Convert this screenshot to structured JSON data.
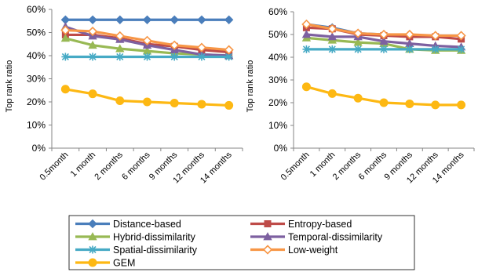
{
  "chart_data": [
    {
      "type": "line",
      "ylabel": "Top rank ratio",
      "ylim": [
        0,
        0.6
      ],
      "yticks": [
        "0%",
        "10%",
        "20%",
        "30%",
        "40%",
        "50%",
        "60%"
      ],
      "categories": [
        "0.5month",
        "1 month",
        "2 months",
        "6 months",
        "9 months",
        "12 months",
        "14 months"
      ],
      "grid": false,
      "series": [
        {
          "name": "Distance-based",
          "values": [
            0.555,
            0.555,
            0.555,
            0.555,
            0.555,
            0.555,
            0.555
          ]
        },
        {
          "name": "Entropy-based",
          "values": [
            0.49,
            0.49,
            0.475,
            0.45,
            0.44,
            0.425,
            0.415
          ]
        },
        {
          "name": "Hybrid-dissimilarity",
          "values": [
            0.475,
            0.445,
            0.43,
            0.42,
            0.41,
            0.405,
            0.4
          ]
        },
        {
          "name": "Temporal-dissimilarity",
          "values": [
            0.525,
            0.485,
            0.47,
            0.445,
            0.425,
            0.405,
            0.4
          ]
        },
        {
          "name": "Spatial-dissimilarity",
          "values": [
            0.395,
            0.395,
            0.395,
            0.395,
            0.395,
            0.395,
            0.395
          ]
        },
        {
          "name": "Low-weight",
          "values": [
            0.51,
            0.505,
            0.485,
            0.465,
            0.445,
            0.435,
            0.425
          ]
        },
        {
          "name": "GEM",
          "values": [
            0.255,
            0.235,
            0.205,
            0.2,
            0.195,
            0.19,
            0.185
          ]
        }
      ]
    },
    {
      "type": "line",
      "ylabel": "Top rank ratio",
      "ylim": [
        0,
        0.6
      ],
      "yticks": [
        "0%",
        "10%",
        "20%",
        "30%",
        "40%",
        "50%",
        "60%"
      ],
      "categories": [
        "0.5month",
        "1 month",
        "2 months",
        "6 months",
        "9 months",
        "12 months",
        "14 months"
      ],
      "grid": false,
      "series": [
        {
          "name": "Distance-based",
          "values": [
            0.545,
            0.53,
            0.505,
            0.5,
            0.495,
            0.495,
            0.495
          ]
        },
        {
          "name": "Entropy-based",
          "values": [
            0.53,
            0.525,
            0.5,
            0.495,
            0.49,
            0.49,
            0.48
          ]
        },
        {
          "name": "Hybrid-dissimilarity",
          "values": [
            0.485,
            0.475,
            0.465,
            0.46,
            0.435,
            0.43,
            0.43
          ]
        },
        {
          "name": "Temporal-dissimilarity",
          "values": [
            0.5,
            0.49,
            0.49,
            0.47,
            0.46,
            0.45,
            0.445
          ]
        },
        {
          "name": "Spatial-dissimilarity",
          "values": [
            0.435,
            0.435,
            0.435,
            0.435,
            0.435,
            0.435,
            0.435
          ]
        },
        {
          "name": "Low-weight",
          "values": [
            0.545,
            0.525,
            0.505,
            0.5,
            0.5,
            0.495,
            0.495
          ]
        },
        {
          "name": "GEM",
          "values": [
            0.27,
            0.24,
            0.22,
            0.2,
            0.195,
            0.19,
            0.19
          ]
        }
      ]
    }
  ],
  "legend": {
    "placement": "bottom",
    "series_style": [
      {
        "name": "Distance-based",
        "color": "#4a7ebb",
        "marker": "diamond"
      },
      {
        "name": "Entropy-based",
        "color": "#be4b48",
        "marker": "square"
      },
      {
        "name": "Hybrid-dissimilarity",
        "color": "#98b954",
        "marker": "triangle"
      },
      {
        "name": "Temporal-dissimilarity",
        "color": "#7d60a0",
        "marker": "triangle"
      },
      {
        "name": "Spatial-dissimilarity",
        "color": "#46aac5",
        "marker": "asterisk"
      },
      {
        "name": "Low-weight",
        "color": "#f79646",
        "marker": "open-diamond"
      },
      {
        "name": "GEM",
        "color": "#fdb813",
        "marker": "circle"
      }
    ]
  }
}
